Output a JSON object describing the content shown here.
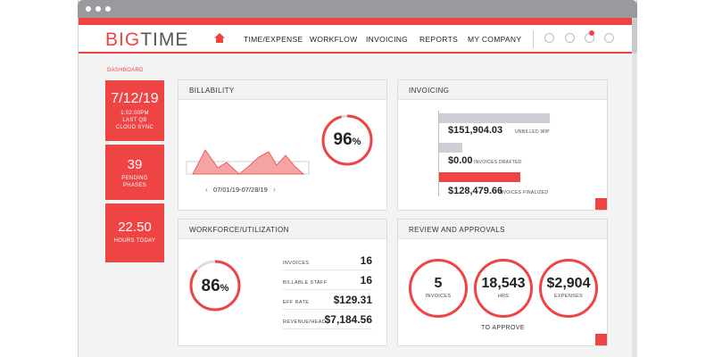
{
  "brand": {
    "logo_a": "BIG",
    "logo_b": "TIME",
    "accent": "#ef4444"
  },
  "nav": {
    "items": [
      "TIME/EXPENSE",
      "WORKFLOW",
      "INVOICING",
      "REPORTS",
      "MY COMPANY"
    ]
  },
  "sidebar": {
    "label": "DASHBOARD",
    "stats": [
      {
        "value": "7/12/19",
        "lines": [
          "1:02:00PM",
          "LAST QB",
          "CLOUD SYNC"
        ]
      },
      {
        "value": "39",
        "lines": [
          "PENDING",
          "PHASES"
        ]
      },
      {
        "value": "22.50",
        "lines": [
          "HOURS TODAY"
        ]
      }
    ]
  },
  "billability": {
    "title": "BILLABILITY",
    "percent": "96",
    "percent_sign": "%",
    "date_range": "07/01/19-07/28/19",
    "progress": 0.96
  },
  "invoicing": {
    "title": "INVOICING",
    "rows": [
      {
        "amount": "$151,904.03",
        "label": "UNBILLED WIP"
      },
      {
        "amount": "$0.00",
        "label": "INVOICES DRAFTED"
      },
      {
        "amount": "$128,479.66",
        "label": "INVOICES FINALIZED"
      }
    ]
  },
  "workforce": {
    "title": "WORKFORCE/UTILIZATION",
    "percent": "86",
    "percent_sign": "%",
    "progress": 0.86,
    "rows": [
      {
        "label": "INVOICES",
        "value": "16"
      },
      {
        "label": "BILLABLE STAFF",
        "value": "16"
      },
      {
        "label": "EFF RATE",
        "value": "$129.31"
      },
      {
        "label": "REVENUE/HEAD",
        "value": "$7,184.56"
      }
    ]
  },
  "review": {
    "title": "REVIEW AND APPROVALS",
    "items": [
      {
        "value": "5",
        "label": "INVOICES"
      },
      {
        "value": "18,543",
        "label": "HRS"
      },
      {
        "value": "$2,904",
        "label": "EXPENSES"
      }
    ],
    "footer": "TO APPROVE"
  }
}
